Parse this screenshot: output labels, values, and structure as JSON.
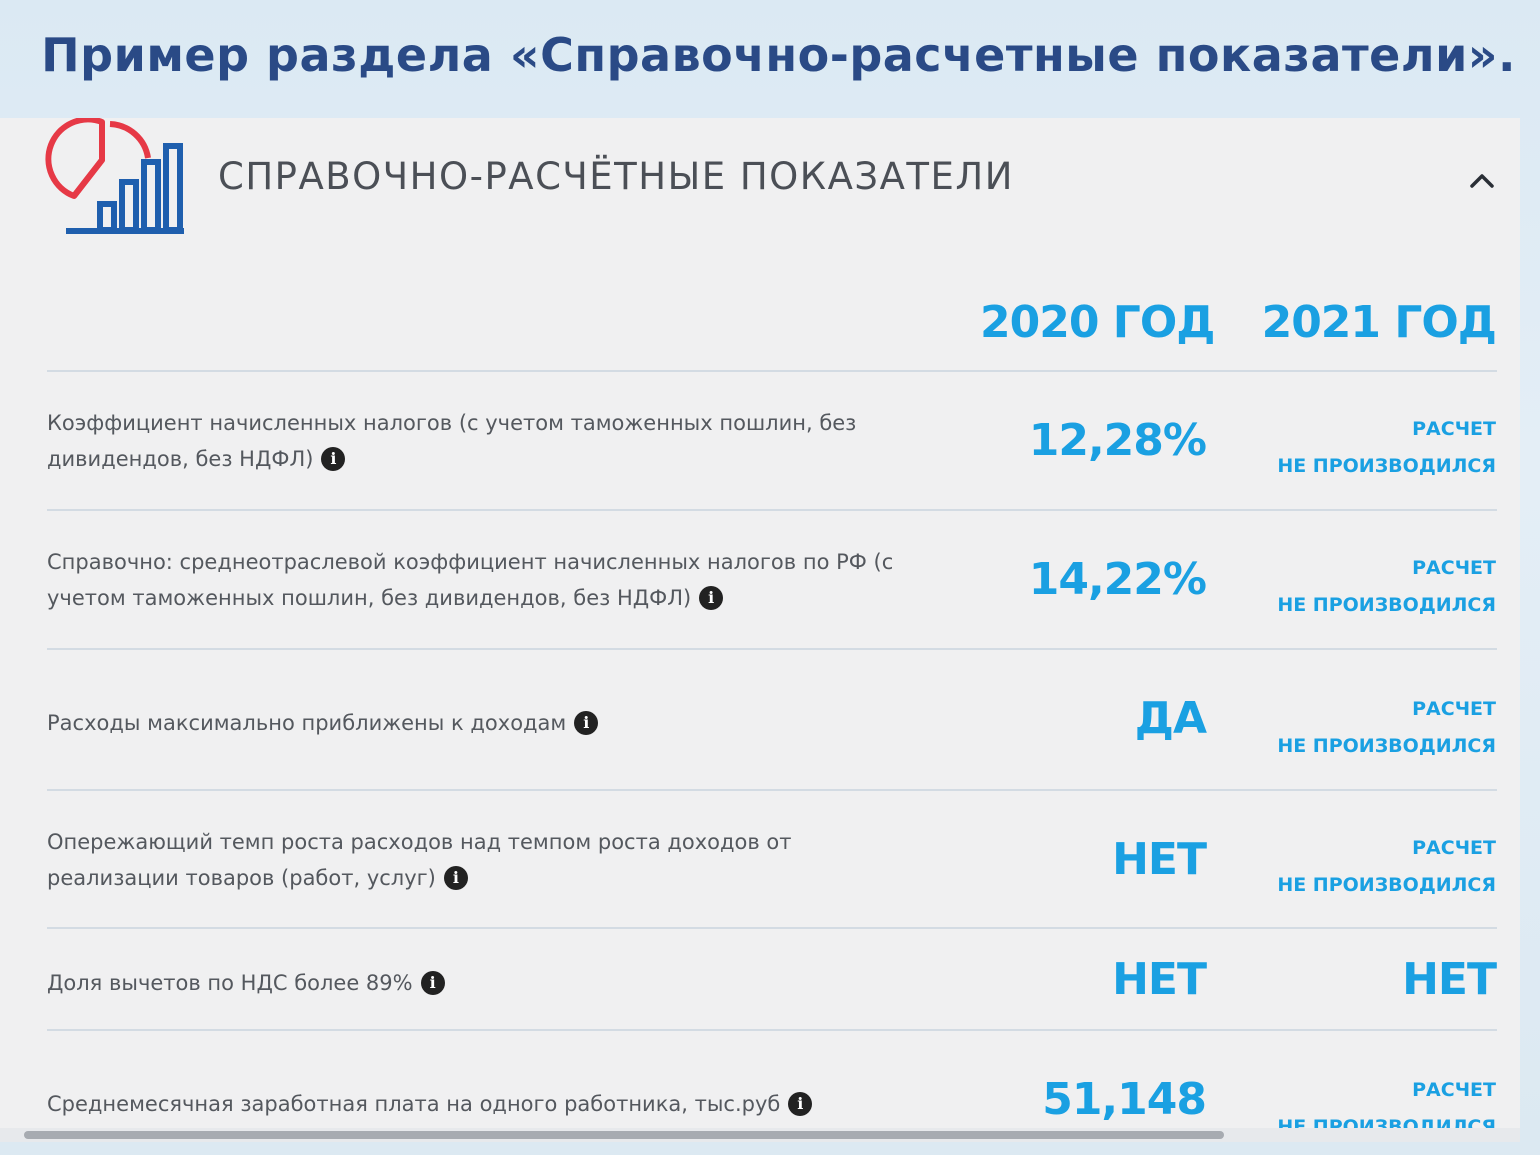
{
  "slide": {
    "title": "Пример раздела «Справочно-расчетные показатели»."
  },
  "section": {
    "title": "СПРАВОЧНО-РАСЧЁТНЫЕ ПОКАЗАТЕЛИ",
    "icon": "pie-and-bar-chart-icon",
    "collapse_icon": "chevron-up-icon",
    "collapse_symbol": "^"
  },
  "columns": {
    "year2020": "2020 ГОД",
    "year2021": "2021 ГОД"
  },
  "colors": {
    "accent": "#1aa0e2",
    "logo_red": "#e63946",
    "logo_blue": "#1f5fae",
    "title": "#2a4a86"
  },
  "info_glyph": "i",
  "rows": [
    {
      "label": "Коэффициент начисленных налогов (с учетом таможенных пошлин, без дивидендов, без НДФЛ)",
      "value_2020": "12,28%",
      "value_2021_line1": "РАСЧЕТ",
      "value_2021_line2": "НЕ ПРОИЗВОДИЛСЯ"
    },
    {
      "label": "Справочно: среднеотраслевой коэффициент начисленных налогов по РФ (с учетом таможенных пошлин, без дивидендов, без НДФЛ)",
      "value_2020": "14,22%",
      "value_2021_line1": "РАСЧЕТ",
      "value_2021_line2": "НЕ ПРОИЗВОДИЛСЯ"
    },
    {
      "label": "Расходы максимально приближены к доходам",
      "value_2020": "ДА",
      "value_2021_line1": "РАСЧЕТ",
      "value_2021_line2": "НЕ ПРОИЗВОДИЛСЯ"
    },
    {
      "label": "Опережающий темп роста расходов над темпом роста доходов от реализации товаров (работ, услуг)",
      "value_2020": "НЕТ",
      "value_2021_line1": "РАСЧЕТ",
      "value_2021_line2": "НЕ ПРОИЗВОДИЛСЯ"
    },
    {
      "label": "Доля вычетов по НДС более 89%",
      "value_2020": "НЕТ",
      "value_2021": "НЕТ"
    },
    {
      "label": "Среднемесячная заработная плата на одного работника, тыс.руб",
      "value_2020": "51,148",
      "value_2021_line1": "РАСЧЕТ",
      "value_2021_line2": "НЕ ПРОИЗВОДИЛСЯ"
    }
  ]
}
